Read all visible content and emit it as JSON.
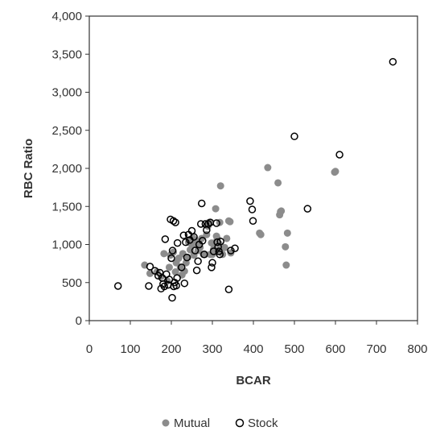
{
  "chart_data": {
    "type": "scatter",
    "title": "",
    "xlabel": "BCAR",
    "ylabel": "RBC Ratio",
    "xlim": [
      0,
      800
    ],
    "ylim": [
      0,
      4000
    ],
    "x_ticks": [
      "0",
      "100",
      "200",
      "300",
      "400",
      "500",
      "600",
      "700",
      "800"
    ],
    "y_ticks": [
      "0",
      "500",
      "1,000",
      "1,500",
      "2,000",
      "2,500",
      "3,000",
      "3,500",
      "4,000"
    ],
    "grid": false,
    "legend_position": "bottom",
    "series": [
      {
        "name": "Mutual",
        "marker": "filled-circle",
        "color": "#8c8c8c",
        "points": [
          [
            135,
            730
          ],
          [
            148,
            620
          ],
          [
            165,
            640
          ],
          [
            175,
            580
          ],
          [
            182,
            880
          ],
          [
            190,
            520
          ],
          [
            195,
            700
          ],
          [
            198,
            860
          ],
          [
            205,
            900
          ],
          [
            210,
            640
          ],
          [
            212,
            760
          ],
          [
            218,
            820
          ],
          [
            222,
            700
          ],
          [
            226,
            600
          ],
          [
            228,
            880
          ],
          [
            232,
            650
          ],
          [
            236,
            760
          ],
          [
            240,
            830
          ],
          [
            242,
            1030
          ],
          [
            246,
            930
          ],
          [
            250,
            1000
          ],
          [
            252,
            1090
          ],
          [
            255,
            860
          ],
          [
            258,
            1060
          ],
          [
            262,
            1000
          ],
          [
            265,
            920
          ],
          [
            270,
            960
          ],
          [
            274,
            1080
          ],
          [
            278,
            870
          ],
          [
            282,
            870
          ],
          [
            286,
            1130
          ],
          [
            289,
            1240
          ],
          [
            292,
            1290
          ],
          [
            295,
            870
          ],
          [
            298,
            1020
          ],
          [
            300,
            870
          ],
          [
            303,
            940
          ],
          [
            305,
            1020
          ],
          [
            308,
            1470
          ],
          [
            310,
            1110
          ],
          [
            312,
            1080
          ],
          [
            314,
            920
          ],
          [
            316,
            1010
          ],
          [
            318,
            1290
          ],
          [
            320,
            1770
          ],
          [
            325,
            870
          ],
          [
            330,
            960
          ],
          [
            335,
            1080
          ],
          [
            340,
            1310
          ],
          [
            343,
            1300
          ],
          [
            345,
            890
          ],
          [
            415,
            1150
          ],
          [
            418,
            1130
          ],
          [
            435,
            2010
          ],
          [
            460,
            1810
          ],
          [
            464,
            1390
          ],
          [
            466,
            1430
          ],
          [
            468,
            1440
          ],
          [
            478,
            970
          ],
          [
            480,
            730
          ],
          [
            483,
            1150
          ],
          [
            598,
            1950
          ],
          [
            600,
            1960
          ]
        ]
      },
      {
        "name": "Stock",
        "marker": "open-circle",
        "color": "#000000",
        "points": [
          [
            70,
            455
          ],
          [
            145,
            455
          ],
          [
            148,
            710
          ],
          [
            160,
            655
          ],
          [
            168,
            590
          ],
          [
            172,
            630
          ],
          [
            175,
            420
          ],
          [
            178,
            560
          ],
          [
            180,
            480
          ],
          [
            183,
            450
          ],
          [
            185,
            1070
          ],
          [
            188,
            610
          ],
          [
            192,
            470
          ],
          [
            195,
            540
          ],
          [
            198,
            1330
          ],
          [
            200,
            820
          ],
          [
            202,
            300
          ],
          [
            203,
            920
          ],
          [
            205,
            1310
          ],
          [
            206,
            450
          ],
          [
            208,
            500
          ],
          [
            210,
            1290
          ],
          [
            212,
            460
          ],
          [
            214,
            560
          ],
          [
            215,
            1020
          ],
          [
            225,
            700
          ],
          [
            230,
            1120
          ],
          [
            232,
            490
          ],
          [
            235,
            1030
          ],
          [
            238,
            830
          ],
          [
            242,
            1130
          ],
          [
            245,
            1060
          ],
          [
            250,
            1180
          ],
          [
            255,
            1100
          ],
          [
            258,
            920
          ],
          [
            262,
            660
          ],
          [
            265,
            780
          ],
          [
            268,
            1000
          ],
          [
            272,
            1270
          ],
          [
            274,
            1540
          ],
          [
            276,
            1050
          ],
          [
            280,
            870
          ],
          [
            283,
            1270
          ],
          [
            286,
            1190
          ],
          [
            290,
            1270
          ],
          [
            295,
            1290
          ],
          [
            298,
            700
          ],
          [
            300,
            760
          ],
          [
            303,
            910
          ],
          [
            310,
            1280
          ],
          [
            312,
            1030
          ],
          [
            314,
            970
          ],
          [
            316,
            910
          ],
          [
            318,
            870
          ],
          [
            320,
            1040
          ],
          [
            340,
            410
          ],
          [
            345,
            920
          ],
          [
            355,
            950
          ],
          [
            392,
            1570
          ],
          [
            397,
            1460
          ],
          [
            399,
            1310
          ],
          [
            500,
            2420
          ],
          [
            532,
            1470
          ],
          [
            610,
            2180
          ],
          [
            740,
            3400
          ]
        ]
      }
    ]
  }
}
